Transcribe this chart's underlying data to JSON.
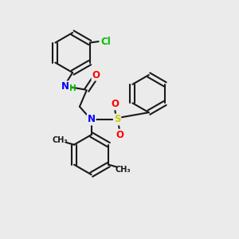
{
  "bg_color": "#ebebeb",
  "bond_color": "#1a1a1a",
  "bond_width": 1.5,
  "atom_colors": {
    "N": "#0000ff",
    "O": "#ff0000",
    "S": "#cccc00",
    "Cl": "#00bb00",
    "H": "#00bb00",
    "C": "#1a1a1a"
  },
  "font_size": 8.5
}
